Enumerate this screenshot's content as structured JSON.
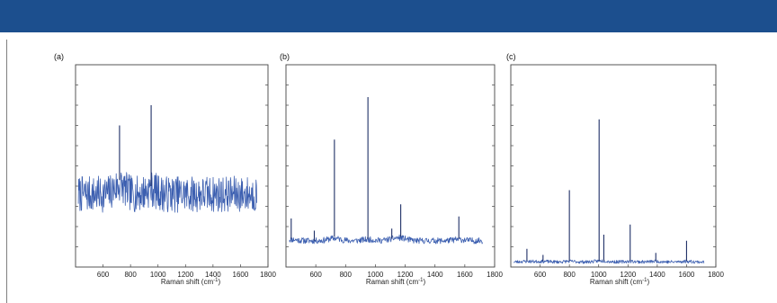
{
  "header": {
    "banner_color": "#1c4f8e"
  },
  "chart_data": [
    {
      "type": "line",
      "panel_label": "(a)",
      "xlabel": "Raman shift (cm",
      "xlabel_sup": "-1",
      "xlabel_close": ")",
      "xlim": [
        400,
        1800
      ],
      "ylim": [
        0,
        10
      ],
      "y_ticks": [
        1,
        2,
        3,
        4,
        5,
        6,
        7,
        8,
        9
      ],
      "x_ticks": [
        "600",
        "800",
        "1000",
        "1200",
        "1400",
        "1600",
        "1800"
      ],
      "x_tick_values": [
        600,
        800,
        1000,
        1200,
        1400,
        1600,
        1800
      ],
      "data_range": [
        420,
        1720
      ],
      "baseline": 3.6,
      "noise": 0.9,
      "seed": 7,
      "peaks": [
        {
          "x": 720,
          "y": 7.0,
          "base": 4.3
        },
        {
          "x": 950,
          "y": 8.0,
          "base": 4.0
        }
      ],
      "color": "#3c5fb0"
    },
    {
      "type": "line",
      "panel_label": "(b)",
      "xlabel": "Raman shift (cm",
      "xlabel_sup": "-1",
      "xlabel_close": ")",
      "xlim": [
        400,
        1800
      ],
      "ylim": [
        0,
        10
      ],
      "y_ticks": [
        1,
        2,
        3,
        4,
        5,
        6,
        7,
        8,
        9
      ],
      "x_ticks": [
        "600",
        "800",
        "1000",
        "1200",
        "1400",
        "1600",
        "1800"
      ],
      "x_tick_values": [
        600,
        800,
        1000,
        1200,
        1400,
        1600,
        1800
      ],
      "data_range": [
        420,
        1720
      ],
      "baseline": 1.3,
      "noise": 0.15,
      "seed": 11,
      "peaks": [
        {
          "x": 435,
          "y": 2.4,
          "base": 1.4
        },
        {
          "x": 590,
          "y": 1.8,
          "base": 1.3
        },
        {
          "x": 725,
          "y": 6.3,
          "base": 1.5
        },
        {
          "x": 950,
          "y": 8.4,
          "base": 1.4
        },
        {
          "x": 1110,
          "y": 1.9,
          "base": 1.4
        },
        {
          "x": 1170,
          "y": 3.1,
          "base": 1.5
        },
        {
          "x": 1560,
          "y": 2.5,
          "base": 1.4
        }
      ],
      "color": "#3c5fb0"
    },
    {
      "type": "line",
      "panel_label": "(c)",
      "xlabel": "Raman shift (cm",
      "xlabel_sup": "-1",
      "xlabel_close": ")",
      "xlim": [
        400,
        1800
      ],
      "ylim": [
        0,
        10
      ],
      "y_ticks": [
        1,
        2,
        3,
        4,
        5,
        6,
        7,
        8,
        9
      ],
      "x_ticks": [
        "600",
        "800",
        "1000",
        "1200",
        "1400",
        "1600",
        "1800"
      ],
      "x_tick_values": [
        600,
        800,
        1000,
        1200,
        1400,
        1600,
        1800
      ],
      "data_range": [
        420,
        1720
      ],
      "baseline": 0.25,
      "noise": 0.08,
      "seed": 23,
      "peaks": [
        {
          "x": 510,
          "y": 0.9,
          "base": 0.3
        },
        {
          "x": 620,
          "y": 0.6,
          "base": 0.3
        },
        {
          "x": 800,
          "y": 3.8,
          "base": 0.3
        },
        {
          "x": 1003,
          "y": 7.3,
          "base": 0.3
        },
        {
          "x": 1035,
          "y": 1.6,
          "base": 0.3
        },
        {
          "x": 1215,
          "y": 2.1,
          "base": 0.3
        },
        {
          "x": 1390,
          "y": 0.7,
          "base": 0.3
        },
        {
          "x": 1600,
          "y": 1.3,
          "base": 0.3
        }
      ],
      "color": "#3c5fb0"
    }
  ]
}
